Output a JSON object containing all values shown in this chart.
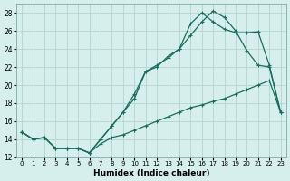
{
  "xlabel": "Humidex (Indice chaleur)",
  "background_color": "#d6efec",
  "grid_color": "#b8d8d4",
  "line_color": "#1a6b5e",
  "xlim": [
    -0.5,
    23.5
  ],
  "ylim": [
    12,
    29
  ],
  "xticks": [
    0,
    1,
    2,
    3,
    4,
    5,
    6,
    7,
    8,
    9,
    10,
    11,
    12,
    13,
    14,
    15,
    16,
    17,
    18,
    19,
    20,
    21,
    22,
    23
  ],
  "yticks": [
    12,
    14,
    16,
    18,
    20,
    22,
    24,
    26,
    28
  ],
  "series1_x": [
    0,
    1,
    2,
    3,
    4,
    5,
    6,
    7,
    8,
    9,
    10,
    11,
    12,
    13,
    14,
    15,
    16,
    17,
    18,
    19,
    20,
    21,
    22,
    23
  ],
  "series1_y": [
    14.8,
    14.0,
    14.2,
    13.0,
    13.0,
    13.0,
    12.5,
    13.5,
    14.2,
    14.5,
    15.0,
    15.5,
    16.0,
    16.5,
    17.0,
    17.5,
    17.8,
    18.2,
    18.5,
    19.0,
    19.5,
    20.0,
    20.5,
    17.0
  ],
  "series2_x": [
    0,
    1,
    2,
    3,
    4,
    5,
    6,
    7,
    8,
    9,
    10,
    11,
    12,
    13,
    14,
    15,
    16,
    17,
    18,
    19,
    20,
    21,
    22,
    23
  ],
  "series2_y": [
    14.8,
    14.0,
    14.2,
    13.0,
    13.0,
    13.0,
    12.5,
    14.0,
    15.5,
    17.0,
    18.5,
    21.5,
    22.0,
    23.2,
    24.0,
    25.5,
    27.0,
    28.2,
    27.5,
    26.0,
    23.8,
    22.2,
    22.0,
    17.0
  ],
  "series3_x": [
    0,
    1,
    2,
    3,
    4,
    5,
    6,
    7,
    8,
    9,
    10,
    11,
    12,
    13,
    14,
    15,
    16,
    17,
    18,
    19,
    20,
    21,
    22,
    23
  ],
  "series3_y": [
    14.8,
    14.0,
    14.2,
    13.0,
    13.0,
    13.0,
    12.5,
    14.0,
    15.5,
    17.0,
    19.0,
    21.5,
    22.2,
    23.0,
    24.0,
    26.8,
    28.0,
    27.0,
    26.2,
    25.8,
    25.8,
    25.9,
    22.2,
    17.0
  ]
}
